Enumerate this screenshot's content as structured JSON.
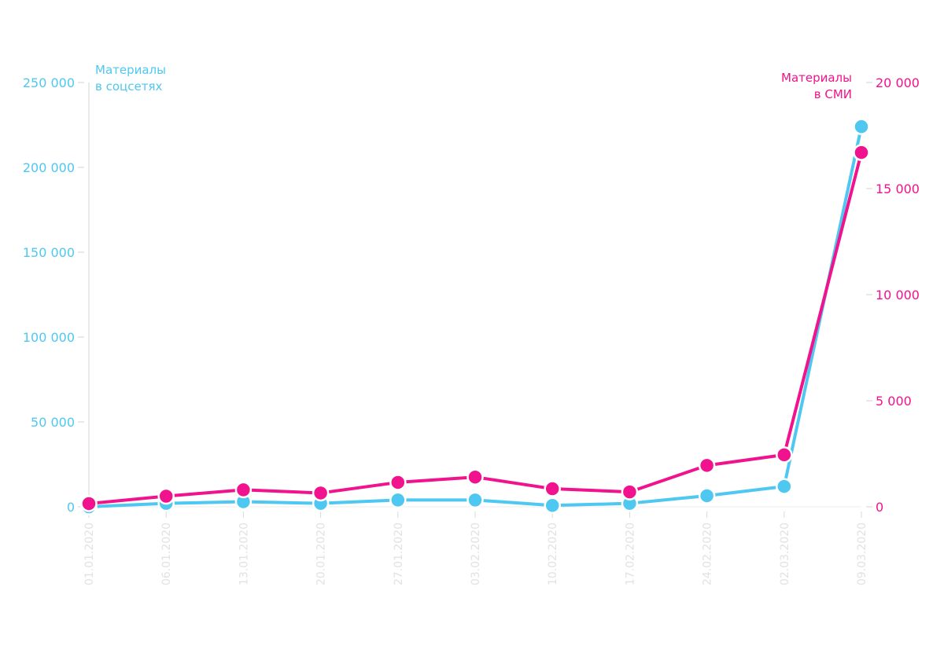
{
  "chart_data": {
    "type": "line",
    "categories": [
      "01.01.2020",
      "06.01.2020",
      "13.01.2020",
      "20.01.2020",
      "27.01.2020",
      "03.02.2020",
      "10.02.2020",
      "17.02.2020",
      "24.02.2020",
      "02.03.2020",
      "09.03.2020"
    ],
    "series": [
      {
        "name": "Материалы в соцсетях",
        "name_lines": [
          "Материалы",
          "в соцсетях"
        ],
        "axis": "left",
        "color": "#4ec8f0",
        "values": [
          0,
          2000,
          3000,
          2000,
          4000,
          4000,
          800,
          2000,
          6500,
          12000,
          224000
        ]
      },
      {
        "name": "Материалы в СМИ",
        "name_lines": [
          "Материалы",
          "в СМИ"
        ],
        "axis": "right",
        "color": "#f0138d",
        "values": [
          150,
          500,
          800,
          650,
          1150,
          1400,
          850,
          700,
          1950,
          2450,
          16700
        ]
      }
    ],
    "left_axis": {
      "ylim": [
        0,
        250000
      ],
      "ticks": [
        "0",
        "50 000",
        "100 000",
        "150 000",
        "200 000",
        "250 000"
      ],
      "color": "#4ec8f0"
    },
    "right_axis": {
      "ylim": [
        0,
        20000
      ],
      "ticks": [
        "0",
        "5 000",
        "10 000",
        "15 000",
        "20 000"
      ],
      "color": "#f0138d"
    },
    "grid": false
  }
}
